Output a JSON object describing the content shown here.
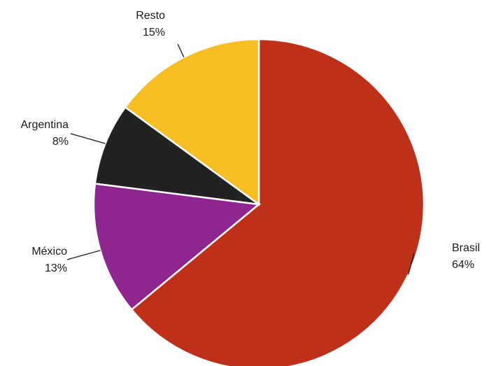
{
  "chart_data": {
    "type": "pie",
    "start": "12 o'clock",
    "direction": "clockwise",
    "slices": [
      {
        "label": "Brasil",
        "value": 64,
        "pct_label": "64%",
        "color": "#BF3018"
      },
      {
        "label": "México",
        "value": 13,
        "pct_label": "13%",
        "color": "#8F268F"
      },
      {
        "label": "Argentina",
        "value": 8,
        "pct_label": "8%",
        "color": "#222222"
      },
      {
        "label": "Resto",
        "value": 15,
        "pct_label": "15%",
        "color": "#F6BE22"
      }
    ]
  }
}
